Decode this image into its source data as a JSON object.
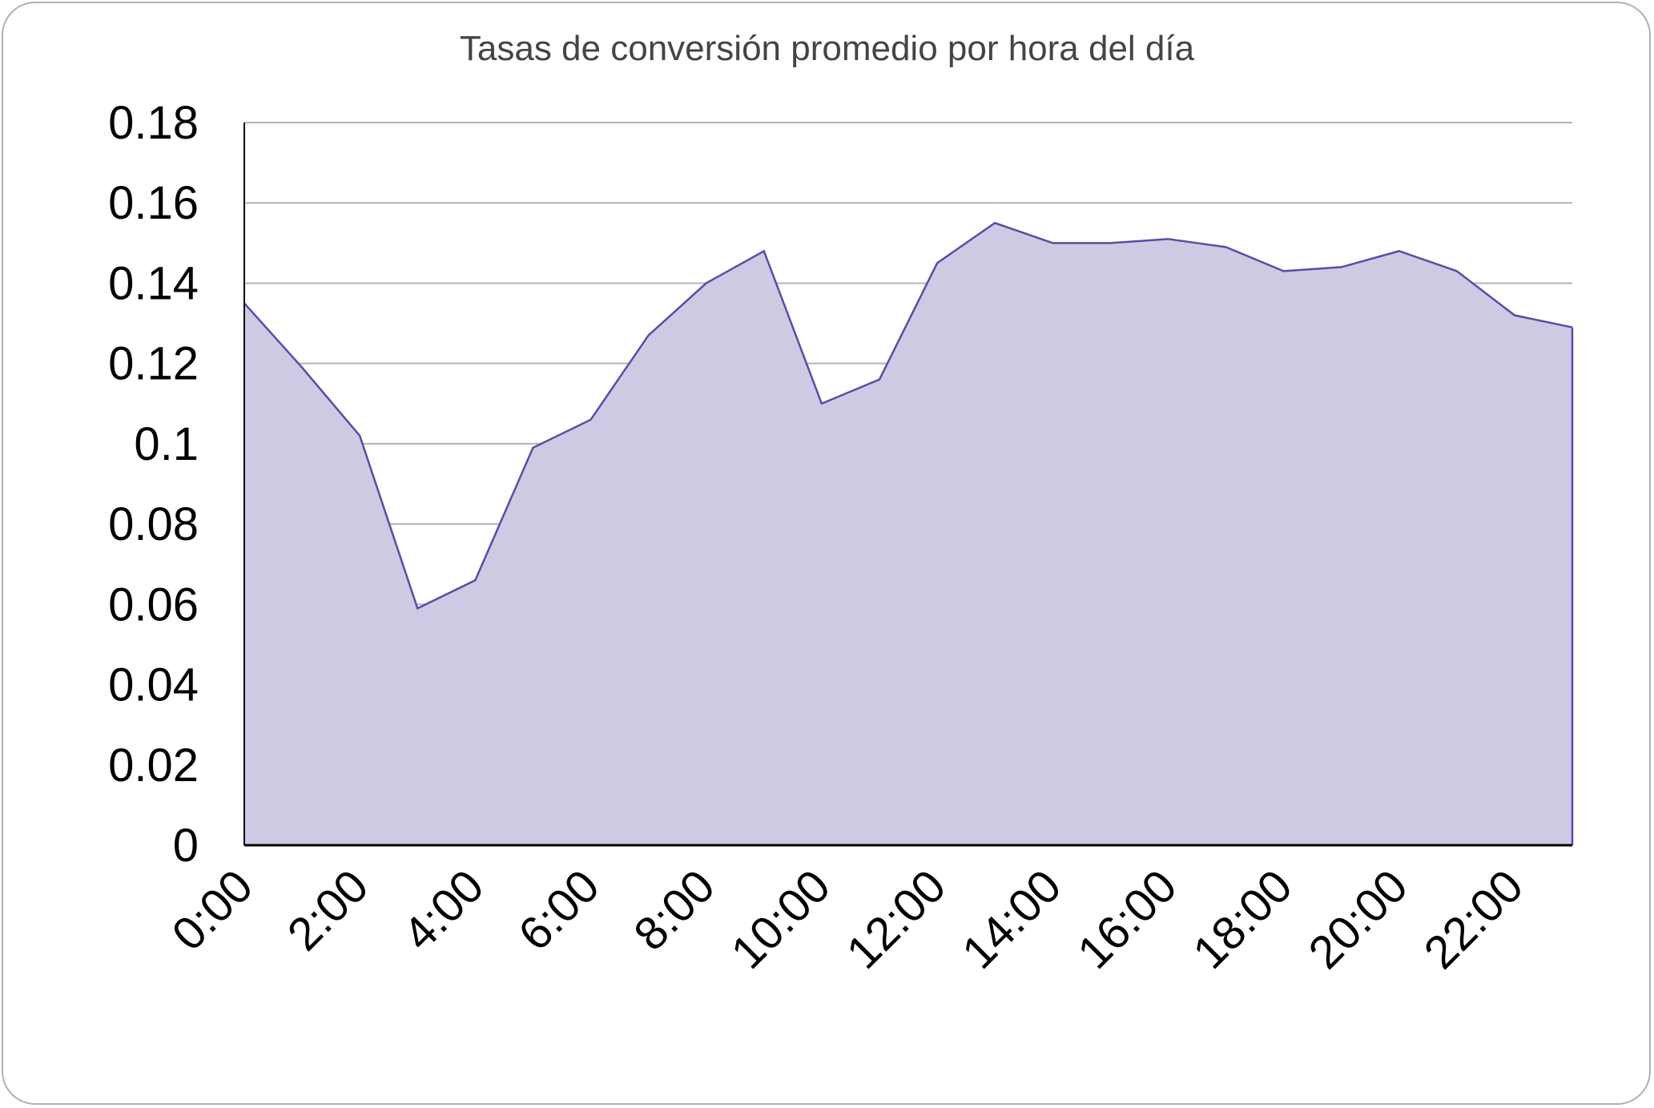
{
  "chart_data": {
    "type": "area",
    "title": "Tasas de conversión promedio por hora del día",
    "xlabel": "",
    "ylabel": "",
    "x": [
      "0:00",
      "1:00",
      "2:00",
      "3:00",
      "4:00",
      "5:00",
      "6:00",
      "7:00",
      "8:00",
      "9:00",
      "10:00",
      "11:00",
      "12:00",
      "13:00",
      "14:00",
      "15:00",
      "16:00",
      "17:00",
      "18:00",
      "19:00",
      "20:00",
      "21:00",
      "22:00",
      "23:00"
    ],
    "x_tick_labels": [
      "0:00",
      "2:00",
      "4:00",
      "6:00",
      "8:00",
      "10:00",
      "12:00",
      "14:00",
      "16:00",
      "18:00",
      "20:00",
      "22:00"
    ],
    "series": [
      {
        "name": "",
        "values": [
          0.135,
          0.119,
          0.102,
          0.059,
          0.066,
          0.099,
          0.106,
          0.127,
          0.14,
          0.148,
          0.11,
          0.116,
          0.145,
          0.155,
          0.15,
          0.15,
          0.151,
          0.149,
          0.143,
          0.144,
          0.148,
          0.143,
          0.132,
          0.129
        ]
      }
    ],
    "ylim": [
      0,
      0.18
    ],
    "y_ticks": [
      "0",
      "0.02",
      "0.04",
      "0.06",
      "0.08",
      "0.1",
      "0.12",
      "0.14",
      "0.16",
      "0.18"
    ],
    "grid": true,
    "legend": "none",
    "colors": {
      "fill": "#d0c9e4",
      "line": "#5b4ba6",
      "grid": "#b3b3b3",
      "axis": "#000000"
    }
  }
}
